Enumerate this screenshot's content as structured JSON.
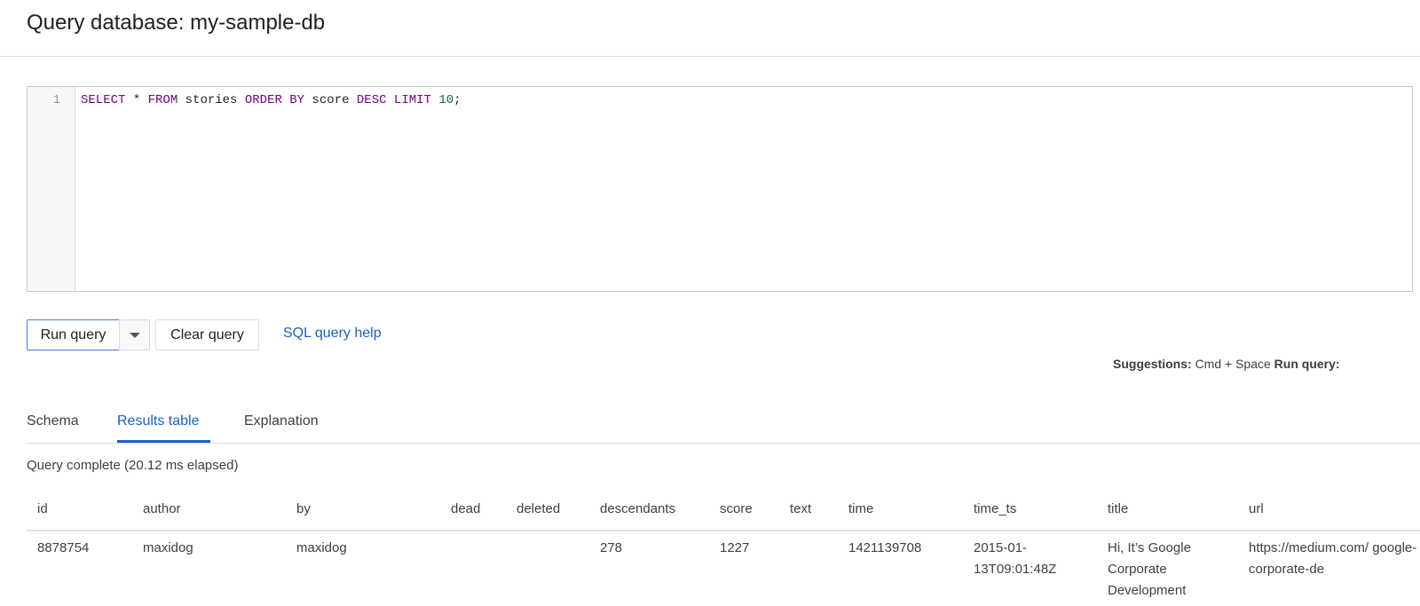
{
  "header": {
    "title": "Query database: my-sample-db"
  },
  "editor": {
    "line_number": "1",
    "tokens": [
      {
        "t": "SELECT",
        "c": "kw"
      },
      {
        "t": " * ",
        "c": ""
      },
      {
        "t": "FROM",
        "c": "kw"
      },
      {
        "t": " stories ",
        "c": ""
      },
      {
        "t": "ORDER BY",
        "c": "kw"
      },
      {
        "t": " score ",
        "c": ""
      },
      {
        "t": "DESC",
        "c": "kw"
      },
      {
        "t": " ",
        "c": ""
      },
      {
        "t": "LIMIT",
        "c": "kw"
      },
      {
        "t": " ",
        "c": ""
      },
      {
        "t": "10",
        "c": "num"
      },
      {
        "t": ";",
        "c": ""
      }
    ]
  },
  "toolbar": {
    "run_label": "Run query",
    "clear_label": "Clear query",
    "help_link": "SQL query help",
    "suggestions_label": "Suggestions:",
    "suggestions_keys": "Cmd + Space",
    "run_shortcut_label": "Run query:"
  },
  "tabs": [
    {
      "label": "Schema"
    },
    {
      "label": "Results table",
      "active": true
    },
    {
      "label": "Explanation"
    }
  ],
  "results": {
    "status": "Query complete (20.12 ms elapsed)",
    "columns": [
      "id",
      "author",
      "by",
      "dead",
      "deleted",
      "descendants",
      "score",
      "text",
      "time",
      "time_ts",
      "title",
      "url"
    ],
    "rows": [
      [
        "8878754",
        "maxidog",
        "maxidog",
        "",
        "",
        "278",
        "1227",
        "",
        "1421139708",
        "2015-01-13T09:01:48Z",
        "Hi, It’s Google Corporate Development",
        "https://medium.com/ google-corporate-de"
      ]
    ]
  },
  "colors": {
    "accent": "#1a5fd0",
    "keyword": "#770088",
    "number": "#116644"
  }
}
